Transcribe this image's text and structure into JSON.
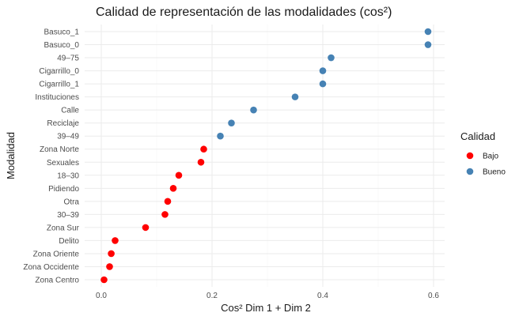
{
  "chart_data": {
    "type": "scatter",
    "title": "Calidad de representación de las modalidades (cos²)",
    "xlabel": "Cos² Dim 1 + Dim 2",
    "ylabel": "Modalidad",
    "xlim": [
      -0.03,
      0.62
    ],
    "xticks": [
      "0.0",
      "0.2",
      "0.4",
      "0.6"
    ],
    "xtick_values": [
      0.0,
      0.2,
      0.4,
      0.6
    ],
    "grid": true,
    "legend": {
      "title": "Calidad",
      "position": "right",
      "entries": [
        {
          "label": "Bajo",
          "color": "#ff0000"
        },
        {
          "label": "Bueno",
          "color": "#4682b4"
        }
      ]
    },
    "points": [
      {
        "label": "Basuco_1",
        "value": 0.59,
        "group": "Bueno"
      },
      {
        "label": "Basuco_0",
        "value": 0.59,
        "group": "Bueno"
      },
      {
        "label": "49–75",
        "value": 0.415,
        "group": "Bueno"
      },
      {
        "label": "Cigarrillo_0",
        "value": 0.4,
        "group": "Bueno"
      },
      {
        "label": "Cigarrillo_1",
        "value": 0.4,
        "group": "Bueno"
      },
      {
        "label": "Instituciones",
        "value": 0.35,
        "group": "Bueno"
      },
      {
        "label": "Calle",
        "value": 0.275,
        "group": "Bueno"
      },
      {
        "label": "Reciclaje",
        "value": 0.235,
        "group": "Bueno"
      },
      {
        "label": "39–49",
        "value": 0.215,
        "group": "Bueno"
      },
      {
        "label": "Zona Norte",
        "value": 0.185,
        "group": "Bajo"
      },
      {
        "label": "Sexuales",
        "value": 0.18,
        "group": "Bajo"
      },
      {
        "label": "18–30",
        "value": 0.14,
        "group": "Bajo"
      },
      {
        "label": "Pidiendo",
        "value": 0.13,
        "group": "Bajo"
      },
      {
        "label": "Otra",
        "value": 0.12,
        "group": "Bajo"
      },
      {
        "label": "30–39",
        "value": 0.115,
        "group": "Bajo"
      },
      {
        "label": "Zona Sur",
        "value": 0.08,
        "group": "Bajo"
      },
      {
        "label": "Delito",
        "value": 0.025,
        "group": "Bajo"
      },
      {
        "label": "Zona Oriente",
        "value": 0.018,
        "group": "Bajo"
      },
      {
        "label": "Zona Occidente",
        "value": 0.015,
        "group": "Bajo"
      },
      {
        "label": "Zona Centro",
        "value": 0.005,
        "group": "Bajo"
      }
    ]
  }
}
